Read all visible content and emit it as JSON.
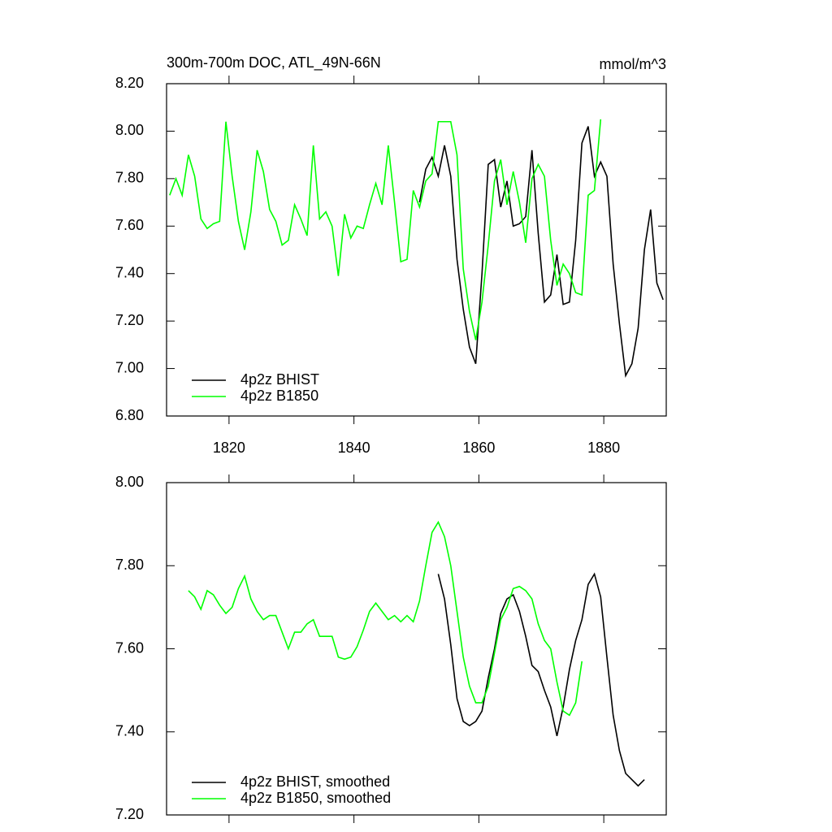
{
  "chart_data": [
    {
      "type": "line",
      "title": "300m-700m DOC, ATL_49N-66N",
      "subtitle": "mmol/m^3",
      "xlim": [
        1810,
        1890
      ],
      "xticks": [
        1820,
        1840,
        1860,
        1880
      ],
      "ylim": [
        6.8,
        8.2
      ],
      "yticks": [
        {
          "value": 6.8,
          "label": "6.80"
        },
        {
          "value": 7.0,
          "label": "7.00"
        },
        {
          "value": 7.2,
          "label": "7.20"
        },
        {
          "value": 7.4,
          "label": "7.40"
        },
        {
          "value": 7.6,
          "label": "7.60"
        },
        {
          "value": 7.8,
          "label": "7.80"
        },
        {
          "value": 8.0,
          "label": "8.00"
        },
        {
          "value": 8.2,
          "label": "8.20"
        }
      ],
      "legend": "lower-left",
      "series": [
        {
          "name": "4p2z BHIST",
          "color": "#000000",
          "x": [
            1850.5,
            1851.5,
            1852.5,
            1853.5,
            1854.5,
            1855.5,
            1856.5,
            1857.5,
            1858.5,
            1859.5,
            1860.5,
            1861.5,
            1862.5,
            1863.5,
            1864.5,
            1865.5,
            1866.5,
            1867.5,
            1868.5,
            1869.5,
            1870.5,
            1871.5,
            1872.5,
            1873.5,
            1874.5,
            1875.5,
            1876.5,
            1877.5,
            1878.5,
            1879.5,
            1880.5,
            1881.5,
            1882.5,
            1883.5,
            1884.5,
            1885.5,
            1886.5,
            1887.5,
            1888.5,
            1889.5
          ],
          "values": [
            7.7,
            7.84,
            7.89,
            7.81,
            7.94,
            7.81,
            7.46,
            7.25,
            7.09,
            7.02,
            7.4,
            7.86,
            7.88,
            7.68,
            7.79,
            7.6,
            7.61,
            7.64,
            7.92,
            7.57,
            7.28,
            7.31,
            7.48,
            7.27,
            7.28,
            7.54,
            7.95,
            8.02,
            7.81,
            7.87,
            7.81,
            7.44,
            7.19,
            6.97,
            7.02,
            7.17,
            7.5,
            7.67,
            7.36,
            7.29
          ]
        },
        {
          "name": "4p2z B1850",
          "color": "#00ff00",
          "x": [
            1810.5,
            1811.5,
            1812.5,
            1813.5,
            1814.5,
            1815.5,
            1816.5,
            1817.5,
            1818.5,
            1819.5,
            1820.5,
            1821.5,
            1822.5,
            1823.5,
            1824.5,
            1825.5,
            1826.5,
            1827.5,
            1828.5,
            1829.5,
            1830.5,
            1831.5,
            1832.5,
            1833.5,
            1834.5,
            1835.5,
            1836.5,
            1837.5,
            1838.5,
            1839.5,
            1840.5,
            1841.5,
            1842.5,
            1843.5,
            1844.5,
            1845.5,
            1846.5,
            1847.5,
            1848.5,
            1849.5,
            1850.5,
            1851.5,
            1852.5,
            1853.5,
            1854.5,
            1855.5,
            1856.5,
            1857.5,
            1858.5,
            1859.5,
            1860.5,
            1861.5,
            1862.5,
            1863.5,
            1864.5,
            1865.5,
            1866.5,
            1867.5,
            1868.5,
            1869.5,
            1870.5,
            1871.5,
            1872.5,
            1873.5,
            1874.5,
            1875.5,
            1876.5,
            1877.5,
            1878.5,
            1879.5
          ],
          "values": [
            7.73,
            7.8,
            7.73,
            7.9,
            7.81,
            7.63,
            7.59,
            7.61,
            7.62,
            8.04,
            7.81,
            7.62,
            7.5,
            7.66,
            7.92,
            7.83,
            7.67,
            7.62,
            7.52,
            7.54,
            7.69,
            7.63,
            7.56,
            7.94,
            7.63,
            7.66,
            7.6,
            7.39,
            7.65,
            7.55,
            7.6,
            7.59,
            7.69,
            7.78,
            7.69,
            7.94,
            7.7,
            7.45,
            7.46,
            7.75,
            7.68,
            7.79,
            7.82,
            8.04,
            8.04,
            8.04,
            7.9,
            7.42,
            7.24,
            7.12,
            7.28,
            7.52,
            7.79,
            7.88,
            7.69,
            7.83,
            7.7,
            7.53,
            7.8,
            7.86,
            7.81,
            7.54,
            7.35,
            7.44,
            7.4,
            7.32,
            7.31,
            7.73,
            7.75,
            8.05
          ]
        }
      ]
    },
    {
      "type": "line",
      "xlim": [
        1810,
        1890
      ],
      "xticks": [
        1820,
        1840,
        1860,
        1880
      ],
      "xtick_labels_shown": false,
      "ylim": [
        7.2,
        8.0
      ],
      "yticks": [
        {
          "value": 7.2,
          "label": "7.20"
        },
        {
          "value": 7.4,
          "label": "7.40"
        },
        {
          "value": 7.6,
          "label": "7.60"
        },
        {
          "value": 7.8,
          "label": "7.80"
        },
        {
          "value": 8.0,
          "label": "8.00"
        }
      ],
      "legend": "lower-left",
      "series": [
        {
          "name": "4p2z BHIST, smoothed",
          "color": "#000000",
          "x": [
            1853.5,
            1854.5,
            1855.5,
            1856.5,
            1857.5,
            1858.5,
            1859.5,
            1860.5,
            1861.5,
            1862.5,
            1863.5,
            1864.5,
            1865.5,
            1866.5,
            1867.5,
            1868.5,
            1869.5,
            1870.5,
            1871.5,
            1872.5,
            1873.5,
            1874.5,
            1875.5,
            1876.5,
            1877.5,
            1878.5,
            1879.5,
            1880.5,
            1881.5,
            1882.5,
            1883.5,
            1884.5,
            1885.5,
            1886.5
          ],
          "values": [
            7.78,
            7.72,
            7.61,
            7.48,
            7.425,
            7.415,
            7.425,
            7.45,
            7.53,
            7.6,
            7.685,
            7.72,
            7.73,
            7.69,
            7.63,
            7.56,
            7.545,
            7.5,
            7.46,
            7.39,
            7.46,
            7.55,
            7.62,
            7.67,
            7.755,
            7.78,
            7.725,
            7.58,
            7.44,
            7.355,
            7.3,
            7.285,
            7.27,
            7.285
          ]
        },
        {
          "name": "4p2z B1850, smoothed",
          "color": "#00ff00",
          "x": [
            1813.5,
            1814.5,
            1815.5,
            1816.5,
            1817.5,
            1818.5,
            1819.5,
            1820.5,
            1821.5,
            1822.5,
            1823.5,
            1824.5,
            1825.5,
            1826.5,
            1827.5,
            1828.5,
            1829.5,
            1830.5,
            1831.5,
            1832.5,
            1833.5,
            1834.5,
            1835.5,
            1836.5,
            1837.5,
            1838.5,
            1839.5,
            1840.5,
            1841.5,
            1842.5,
            1843.5,
            1844.5,
            1845.5,
            1846.5,
            1847.5,
            1848.5,
            1849.5,
            1850.5,
            1851.5,
            1852.5,
            1853.5,
            1854.5,
            1855.5,
            1856.5,
            1857.5,
            1858.5,
            1859.5,
            1860.5,
            1861.5,
            1862.5,
            1863.5,
            1864.5,
            1865.5,
            1866.5,
            1867.5,
            1868.5,
            1869.5,
            1870.5,
            1871.5,
            1872.5,
            1873.5,
            1874.5,
            1875.5,
            1876.5
          ],
          "values": [
            7.74,
            7.725,
            7.695,
            7.74,
            7.73,
            7.705,
            7.685,
            7.7,
            7.745,
            7.775,
            7.72,
            7.69,
            7.67,
            7.68,
            7.68,
            7.64,
            7.6,
            7.64,
            7.64,
            7.66,
            7.67,
            7.63,
            7.63,
            7.63,
            7.58,
            7.575,
            7.58,
            7.605,
            7.645,
            7.69,
            7.71,
            7.69,
            7.67,
            7.68,
            7.665,
            7.68,
            7.665,
            7.715,
            7.8,
            7.88,
            7.905,
            7.87,
            7.8,
            7.69,
            7.58,
            7.51,
            7.47,
            7.47,
            7.51,
            7.59,
            7.67,
            7.7,
            7.745,
            7.75,
            7.74,
            7.72,
            7.66,
            7.62,
            7.6,
            7.52,
            7.45,
            7.44,
            7.47,
            7.57
          ]
        }
      ]
    }
  ]
}
